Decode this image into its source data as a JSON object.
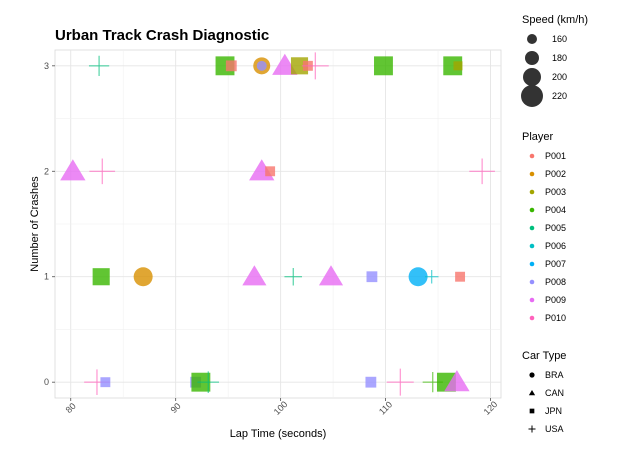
{
  "chart_data": {
    "type": "scatter",
    "title": "Urban Track Crash Diagnostic",
    "xlabel": "Lap Time (seconds)",
    "ylabel": "Number of Crashes",
    "xlim": [
      78.5,
      121
    ],
    "ylim": [
      -0.15,
      3.15
    ],
    "xticks": [
      80,
      90,
      100,
      110,
      120
    ],
    "yticks": [
      0,
      1,
      2,
      3
    ],
    "grid": true,
    "legend_position": "right",
    "size_legend": {
      "title": "Speed (km/h)",
      "entries": [
        {
          "label": "160",
          "value": 160
        },
        {
          "label": "180",
          "value": 180
        },
        {
          "label": "200",
          "value": 200
        },
        {
          "label": "220",
          "value": 220
        }
      ]
    },
    "color_legend": {
      "title": "Player",
      "entries": [
        {
          "label": "P001",
          "color": "#f8766d"
        },
        {
          "label": "P002",
          "color": "#d89000"
        },
        {
          "label": "P003",
          "color": "#a3a500"
        },
        {
          "label": "P004",
          "color": "#39b600"
        },
        {
          "label": "P005",
          "color": "#00bf7d"
        },
        {
          "label": "P006",
          "color": "#00bfc4"
        },
        {
          "label": "P007",
          "color": "#00b0f6"
        },
        {
          "label": "P008",
          "color": "#9590ff"
        },
        {
          "label": "P009",
          "color": "#e76bf3"
        },
        {
          "label": "P010",
          "color": "#ff62bc"
        }
      ]
    },
    "shape_legend": {
      "title": "Car Type",
      "entries": [
        {
          "label": "BRA",
          "shape": "circle"
        },
        {
          "label": "CAN",
          "shape": "triangle"
        },
        {
          "label": "JPN",
          "shape": "square"
        },
        {
          "label": "USA",
          "shape": "plus"
        }
      ]
    },
    "points": [
      {
        "x": 82.7,
        "y": 3,
        "player": "P005",
        "car": "USA",
        "speed": 185
      },
      {
        "x": 94.7,
        "y": 3,
        "player": "P004",
        "car": "JPN",
        "speed": 215
      },
      {
        "x": 95.3,
        "y": 3,
        "player": "P001",
        "car": "JPN",
        "speed": 170
      },
      {
        "x": 98.2,
        "y": 3,
        "player": "P002",
        "car": "BRA",
        "speed": 195
      },
      {
        "x": 98.2,
        "y": 3,
        "player": "P008",
        "car": "BRA",
        "speed": 160
      },
      {
        "x": 100.4,
        "y": 3,
        "player": "P009",
        "car": "CAN",
        "speed": 215
      },
      {
        "x": 101.8,
        "y": 3,
        "player": "P003",
        "car": "JPN",
        "speed": 205
      },
      {
        "x": 102.6,
        "y": 3,
        "player": "P001",
        "car": "JPN",
        "speed": 165
      },
      {
        "x": 103.3,
        "y": 3,
        "player": "P010",
        "car": "USA",
        "speed": 210
      },
      {
        "x": 109.8,
        "y": 3,
        "player": "P004",
        "car": "JPN",
        "speed": 215
      },
      {
        "x": 116.4,
        "y": 3,
        "player": "P004",
        "car": "JPN",
        "speed": 215
      },
      {
        "x": 116.9,
        "y": 3,
        "player": "P003",
        "car": "JPN",
        "speed": 160
      },
      {
        "x": 80.2,
        "y": 2,
        "player": "P009",
        "car": "CAN",
        "speed": 215
      },
      {
        "x": 83.0,
        "y": 2,
        "player": "P010",
        "car": "USA",
        "speed": 205
      },
      {
        "x": 98.2,
        "y": 2,
        "player": "P009",
        "car": "CAN",
        "speed": 215
      },
      {
        "x": 99.0,
        "y": 2,
        "player": "P001",
        "car": "JPN",
        "speed": 165
      },
      {
        "x": 119.2,
        "y": 2,
        "player": "P010",
        "car": "USA",
        "speed": 205
      },
      {
        "x": 82.9,
        "y": 1,
        "player": "P004",
        "car": "JPN",
        "speed": 205
      },
      {
        "x": 86.9,
        "y": 1,
        "player": "P002",
        "car": "BRA",
        "speed": 205
      },
      {
        "x": 97.5,
        "y": 1,
        "player": "P009",
        "car": "CAN",
        "speed": 210
      },
      {
        "x": 101.2,
        "y": 1,
        "player": "P005",
        "car": "USA",
        "speed": 175
      },
      {
        "x": 104.8,
        "y": 1,
        "player": "P009",
        "car": "CAN",
        "speed": 210
      },
      {
        "x": 108.7,
        "y": 1,
        "player": "P008",
        "car": "JPN",
        "speed": 170
      },
      {
        "x": 113.1,
        "y": 1,
        "player": "P007",
        "car": "BRA",
        "speed": 205
      },
      {
        "x": 114.4,
        "y": 1,
        "player": "P006",
        "car": "USA",
        "speed": 160
      },
      {
        "x": 117.1,
        "y": 1,
        "player": "P001",
        "car": "JPN",
        "speed": 165
      },
      {
        "x": 82.5,
        "y": 0,
        "player": "P010",
        "car": "USA",
        "speed": 205
      },
      {
        "x": 83.3,
        "y": 0,
        "player": "P008",
        "car": "JPN",
        "speed": 165
      },
      {
        "x": 91.9,
        "y": 0,
        "player": "P008",
        "car": "JPN",
        "speed": 170
      },
      {
        "x": 92.4,
        "y": 0,
        "player": "P004",
        "car": "JPN",
        "speed": 215
      },
      {
        "x": 93.1,
        "y": 0,
        "player": "P005",
        "car": "USA",
        "speed": 190
      },
      {
        "x": 108.6,
        "y": 0,
        "player": "P008",
        "car": "JPN",
        "speed": 170
      },
      {
        "x": 111.4,
        "y": 0,
        "player": "P010",
        "car": "USA",
        "speed": 210
      },
      {
        "x": 114.5,
        "y": 0,
        "player": "P004",
        "car": "USA",
        "speed": 185
      },
      {
        "x": 115.8,
        "y": 0,
        "player": "P004",
        "car": "JPN",
        "speed": 215
      },
      {
        "x": 116.8,
        "y": 0,
        "player": "P009",
        "car": "CAN",
        "speed": 215
      }
    ]
  }
}
